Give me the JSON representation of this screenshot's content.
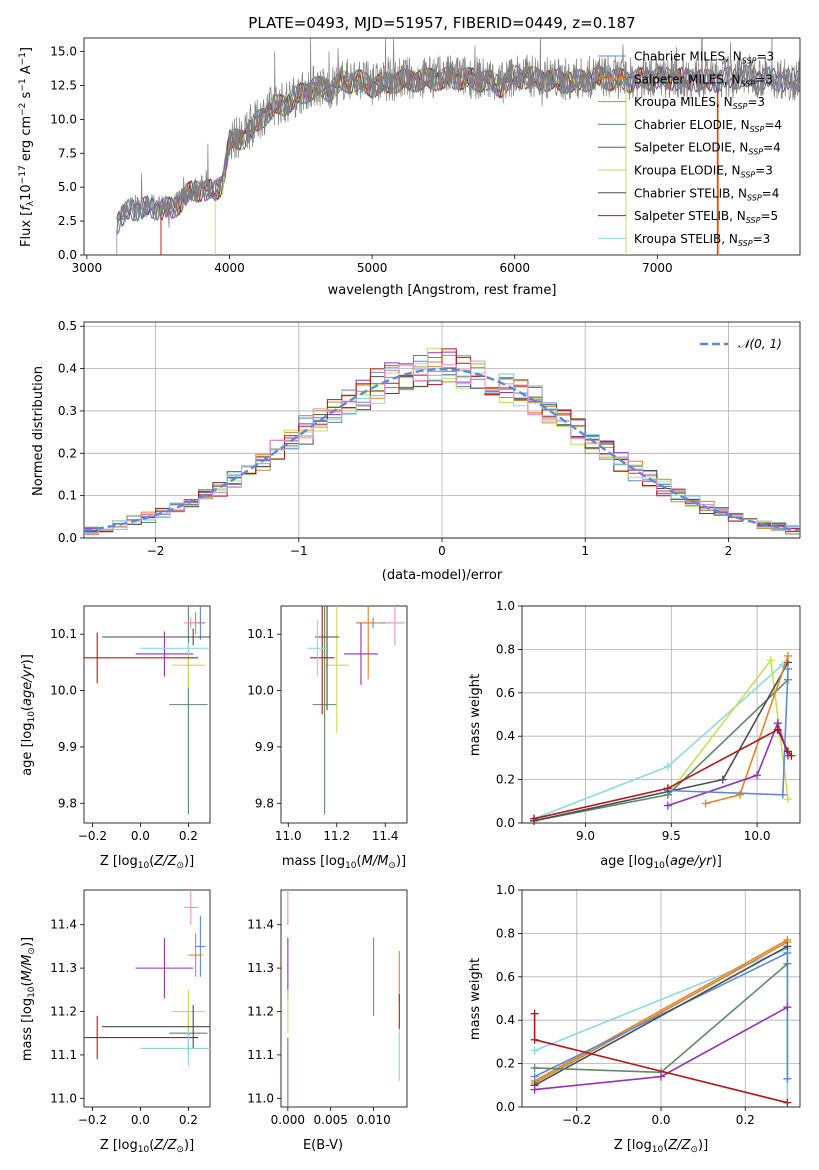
{
  "figure": {
    "title": "PLATE=0493, MJD=51957, FIBERID=0449, z=0.187"
  },
  "colors": {
    "c0": "#5b8bd8",
    "c1": "#e8822b",
    "c2": "#c48a3a",
    "c3": "#5d8a68",
    "c4": "#9234b0",
    "c5": "#c8dd5a",
    "c6": "#4d4d4d",
    "c7": "#b01a1a",
    "c8": "#8fd8e0",
    "c9": "#e890c8",
    "data": "#808080"
  },
  "chart_data": [
    {
      "id": "spectrum",
      "type": "line",
      "xlabel": "wavelength [Angstrom, rest frame]",
      "ylabel": "Flux [f_λ 10^-17 erg cm^-2 s^-1 A^-1]",
      "xlim": [
        2980,
        8000
      ],
      "ylim": [
        0,
        16
      ],
      "xticks": [
        3000,
        4000,
        5000,
        6000,
        7000
      ],
      "yticks": [
        0.0,
        2.5,
        5.0,
        7.5,
        10.0,
        12.5,
        15.0
      ],
      "ytick_labels": [
        "0.0",
        "2.5",
        "5.0",
        "7.5",
        "10.0",
        "12.5",
        "15.0"
      ],
      "observed_continuum": {
        "x": [
          3210,
          3300,
          3400,
          3500,
          3600,
          3700,
          3800,
          3900,
          3950,
          4000,
          4100,
          4200,
          4300,
          4400,
          4500,
          4600,
          4700,
          4800,
          4900,
          5000,
          5200,
          5400,
          5600,
          5800,
          5900,
          6000,
          6200,
          6400,
          6600,
          6800,
          7000,
          7200,
          7400,
          7600,
          7800,
          8000
        ],
        "y": [
          2.5,
          3.5,
          3.6,
          3.6,
          3.5,
          4.6,
          5.0,
          4.8,
          5.5,
          8.5,
          8.8,
          10.0,
          11.0,
          11.3,
          12.0,
          12.5,
          12.3,
          12.9,
          13.0,
          12.6,
          13.0,
          13.1,
          13.2,
          13.0,
          12.6,
          13.3,
          13.1,
          12.9,
          13.2,
          13.0,
          13.2,
          13.1,
          13.0,
          13.3,
          13.1,
          13.0
        ]
      },
      "legend": [
        {
          "label": "Chabrier MILES, N_SSP=3",
          "color": "c0"
        },
        {
          "label": "Salpeter MILES, N_SSP=3",
          "color": "c1"
        },
        {
          "label": "Kroupa MILES, N_SSP=3",
          "color": "c2"
        },
        {
          "label": "Chabrier ELODIE, N_SSP=4",
          "color": "c3"
        },
        {
          "label": "Salpeter ELODIE, N_SSP=4",
          "color": "c4"
        },
        {
          "label": "Kroupa ELODIE, N_SSP=3",
          "color": "c5"
        },
        {
          "label": "Chabrier STELIB, N_SSP=4",
          "color": "c6"
        },
        {
          "label": "Salpeter STELIB, N_SSP=5",
          "color": "c7"
        },
        {
          "label": "Kroupa STELIB, N_SSP=3",
          "color": "c8"
        }
      ]
    },
    {
      "id": "residuals",
      "type": "histogram",
      "xlabel": "(data-model)/error",
      "ylabel": "Normed distribution",
      "xlim": [
        -2.5,
        2.5
      ],
      "ylim": [
        0,
        0.51
      ],
      "xticks": [
        -2,
        -1,
        0,
        1,
        2
      ],
      "xtick_labels": [
        "−2",
        "−1",
        "0",
        "1",
        "2"
      ],
      "yticks": [
        0.0,
        0.1,
        0.2,
        0.3,
        0.4,
        0.5
      ],
      "ytick_labels": [
        "0.0",
        "0.1",
        "0.2",
        "0.3",
        "0.4",
        "0.5"
      ],
      "bin_width": 0.1,
      "reference_curve": "N(0,1)",
      "legend": [
        {
          "label": "𝒩(0, 1)",
          "color": "c0"
        }
      ],
      "grid": true
    },
    {
      "id": "age-vs-Z",
      "type": "errorbar",
      "xlabel": "Z [log10(Z/Z⊙)]",
      "ylabel": "age [log10(age/yr)]",
      "xlim": [
        -0.235,
        0.29
      ],
      "ylim": [
        9.765,
        10.15
      ],
      "xticks": [
        -0.2,
        0.0,
        0.2
      ],
      "xtick_labels": [
        "−0.2",
        "0.0",
        "0.2"
      ],
      "yticks": [
        9.8,
        9.9,
        10.0,
        10.1
      ],
      "ytick_labels": [
        "9.8",
        "9.9",
        "10.0",
        "10.1"
      ],
      "points": [
        {
          "color": "c0",
          "x": 0.25,
          "xerr": 0.02,
          "y": 10.12,
          "yerr": 0.03
        },
        {
          "color": "c1",
          "x": 0.23,
          "xerr": 0.03,
          "y": 10.12,
          "yerr": 0.02
        },
        {
          "color": "c3",
          "x": 0.2,
          "xerr": 0.08,
          "y": 9.975,
          "yerr": 0.195
        },
        {
          "color": "c4",
          "x": 0.1,
          "xerr": 0.12,
          "y": 10.065,
          "yerr": 0.04
        },
        {
          "color": "c5",
          "x": 0.2,
          "xerr": 0.07,
          "y": 10.045,
          "yerr": 0.04
        },
        {
          "color": "c6",
          "x": 0.22,
          "xerr": 0.38,
          "y": 10.095,
          "yerr": 0.015
        },
        {
          "color": "c7",
          "x": -0.18,
          "xerr": 0.42,
          "y": 10.058,
          "yerr": 0.045
        },
        {
          "color": "c8",
          "x": 0.2,
          "xerr": 0.2,
          "y": 10.075,
          "yerr": 0.01
        },
        {
          "color": "c9",
          "x": 0.21,
          "xerr": 0.03,
          "y": 10.12,
          "yerr": 0.01
        }
      ]
    },
    {
      "id": "age-vs-mass",
      "type": "errorbar",
      "xlabel": "mass [log10(M/M⊙)]",
      "ylabel": "",
      "xlim": [
        10.97,
        11.49
      ],
      "ylim": [
        9.765,
        10.15
      ],
      "xticks": [
        11.0,
        11.2,
        11.4
      ],
      "xtick_labels": [
        "11.0",
        "11.2",
        "11.4"
      ],
      "yticks": [
        9.8,
        9.9,
        10.0,
        10.1
      ],
      "ytick_labels": [
        "9.8",
        "9.9",
        "10.0",
        "10.1"
      ],
      "points": [
        {
          "color": "c0",
          "x": 11.35,
          "xerr": 0.07,
          "y": 10.12,
          "yerr": 0.01
        },
        {
          "color": "c1",
          "x": 11.33,
          "xerr": 0.05,
          "y": 10.12,
          "yerr": 0.1
        },
        {
          "color": "c3",
          "x": 11.15,
          "xerr": 0.05,
          "y": 9.975,
          "yerr": 0.195
        },
        {
          "color": "c4",
          "x": 11.3,
          "xerr": 0.07,
          "y": 10.065,
          "yerr": 0.055
        },
        {
          "color": "c5",
          "x": 11.2,
          "xerr": 0.05,
          "y": 10.045,
          "yerr": 0.12
        },
        {
          "color": "c6",
          "x": 11.16,
          "xerr": 0.05,
          "y": 10.095,
          "yerr": 0.13
        },
        {
          "color": "c7",
          "x": 11.14,
          "xerr": 0.05,
          "y": 10.058,
          "yerr": 0.1
        },
        {
          "color": "c8",
          "x": 11.12,
          "xerr": 0.04,
          "y": 10.075,
          "yerr": 0.05
        },
        {
          "color": "c9",
          "x": 11.44,
          "xerr": 0.04,
          "y": 10.12,
          "yerr": 0.04
        }
      ]
    },
    {
      "id": "massweight-vs-age",
      "type": "line",
      "xlabel": "age [log10(age/yr)]",
      "ylabel": "mass weight",
      "xlim": [
        8.63,
        10.25
      ],
      "ylim": [
        0,
        1.0
      ],
      "xticks": [
        9.0,
        9.5,
        10.0
      ],
      "xtick_labels": [
        "9.0",
        "9.5",
        "10.0"
      ],
      "yticks": [
        0.0,
        0.2,
        0.4,
        0.6,
        0.8,
        1.0
      ],
      "ytick_labels": [
        "0.0",
        "0.2",
        "0.4",
        "0.6",
        "0.8",
        "1.0"
      ],
      "grid": true,
      "series": [
        {
          "color": "c8",
          "x": [
            8.7,
            9.48,
            10.15
          ],
          "y": [
            0.02,
            0.26,
            0.73
          ]
        },
        {
          "color": "c5",
          "x": [
            9.48,
            10.08,
            10.18
          ],
          "y": [
            0.13,
            0.75,
            0.11
          ]
        },
        {
          "color": "c3",
          "x": [
            8.7,
            9.48,
            10.18
          ],
          "y": [
            0.01,
            0.13,
            0.66
          ]
        },
        {
          "color": "c6",
          "x": [
            8.7,
            9.8,
            10.18
          ],
          "y": [
            0.01,
            0.2,
            0.74
          ]
        },
        {
          "color": "c1",
          "x": [
            9.7,
            9.9,
            10.18
          ],
          "y": [
            0.09,
            0.13,
            0.77
          ]
        },
        {
          "color": "c4",
          "x": [
            9.48,
            10.0,
            10.12,
            10.18
          ],
          "y": [
            0.08,
            0.22,
            0.46,
            0.31
          ]
        },
        {
          "color": "c0",
          "x": [
            9.48,
            10.15,
            10.18
          ],
          "y": [
            0.15,
            0.13,
            0.71
          ]
        },
        {
          "color": "c7",
          "x": [
            8.7,
            9.48,
            10.12,
            10.18,
            10.2
          ],
          "y": [
            0.02,
            0.16,
            0.43,
            0.33,
            0.31
          ]
        }
      ]
    },
    {
      "id": "mass-vs-Z",
      "type": "errorbar",
      "xlabel": "Z [log10(Z/Z⊙)]",
      "ylabel": "mass [log10(M/M⊙)]",
      "xlim": [
        -0.235,
        0.29
      ],
      "ylim": [
        10.98,
        11.48
      ],
      "xticks": [
        -0.2,
        0.0,
        0.2
      ],
      "xtick_labels": [
        "−0.2",
        "0.0",
        "0.2"
      ],
      "yticks": [
        11.0,
        11.1,
        11.2,
        11.3,
        11.4
      ],
      "ytick_labels": [
        "11.0",
        "11.1",
        "11.2",
        "11.3",
        "11.4"
      ],
      "points": [
        {
          "color": "c0",
          "x": 0.25,
          "xerr": 0.02,
          "y": 11.35,
          "yerr": 0.07
        },
        {
          "color": "c1",
          "x": 0.23,
          "xerr": 0.03,
          "y": 11.33,
          "yerr": 0.05
        },
        {
          "color": "c3",
          "x": 0.2,
          "xerr": 0.08,
          "y": 11.15,
          "yerr": 0.05
        },
        {
          "color": "c4",
          "x": 0.1,
          "xerr": 0.12,
          "y": 11.3,
          "yerr": 0.07
        },
        {
          "color": "c5",
          "x": 0.2,
          "xerr": 0.07,
          "y": 11.2,
          "yerr": 0.05
        },
        {
          "color": "c6",
          "x": 0.22,
          "xerr": 0.38,
          "y": 11.165,
          "yerr": 0.05
        },
        {
          "color": "c7",
          "x": -0.18,
          "xerr": 0.42,
          "y": 11.14,
          "yerr": 0.05
        },
        {
          "color": "c8",
          "x": 0.2,
          "xerr": 0.2,
          "y": 11.115,
          "yerr": 0.04
        },
        {
          "color": "c9",
          "x": 0.21,
          "xerr": 0.03,
          "y": 11.44,
          "yerr": 0.04
        }
      ]
    },
    {
      "id": "mass-vs-ebv",
      "type": "errorbar",
      "xlabel": "E(B-V)",
      "ylabel": "",
      "xlim": [
        -0.0008,
        0.0139
      ],
      "ylim": [
        10.98,
        11.48
      ],
      "xticks": [
        0.0,
        0.005,
        0.01
      ],
      "xtick_labels": [
        "0.000",
        "0.005",
        "0.010"
      ],
      "yticks": [
        11.0,
        11.1,
        11.2,
        11.3,
        11.4
      ],
      "ytick_labels": [
        "11.0",
        "11.1",
        "11.2",
        "11.3",
        "11.4"
      ],
      "points": [
        {
          "color": "c9",
          "x": 0.0,
          "xerr": 0,
          "y": 11.44,
          "yerr": 0.04
        },
        {
          "color": "c4",
          "x": 0.0,
          "xerr": 0,
          "y": 11.3,
          "yerr": 0.07
        },
        {
          "color": "c5",
          "x": 0.0,
          "xerr": 0,
          "y": 11.2,
          "yerr": 0.05
        },
        {
          "color": "c3",
          "x": 0.0,
          "xerr": 0,
          "y": 11.06,
          "yerr": 0.08
        },
        {
          "color": "c0",
          "x": 0.01,
          "xerr": 0,
          "y": 11.28,
          "yerr": 0.09
        },
        {
          "color": "c1",
          "x": 0.013,
          "xerr": 0,
          "y": 11.28,
          "yerr": 0.06
        },
        {
          "color": "c7",
          "x": 0.013,
          "xerr": 0,
          "y": 11.2,
          "yerr": 0.04
        },
        {
          "color": "c8",
          "x": 0.013,
          "xerr": 0,
          "y": 11.1,
          "yerr": 0.06
        }
      ]
    },
    {
      "id": "massweight-vs-Z",
      "type": "line",
      "xlabel": "Z [log10(Z/Z⊙)]",
      "ylabel": "mass weight",
      "xlim": [
        -0.33,
        0.33
      ],
      "ylim": [
        0,
        1.0
      ],
      "xticks": [
        -0.2,
        0.0,
        0.2
      ],
      "xtick_labels": [
        "−0.2",
        "0.0",
        "0.2"
      ],
      "yticks": [
        0.0,
        0.2,
        0.4,
        0.6,
        0.8,
        1.0
      ],
      "ytick_labels": [
        "0.0",
        "0.2",
        "0.4",
        "0.6",
        "0.8",
        "1.0"
      ],
      "grid": true,
      "series": [
        {
          "color": "c8",
          "x": [
            -0.3,
            0.3,
            0.3
          ],
          "y": [
            0.26,
            0.73,
            0.02
          ]
        },
        {
          "color": "c1",
          "x": [
            -0.3,
            0.3
          ],
          "y": [
            0.12,
            0.77
          ]
        },
        {
          "color": "c2",
          "x": [
            -0.3,
            0.3
          ],
          "y": [
            0.11,
            0.76
          ]
        },
        {
          "color": "c0",
          "x": [
            -0.3,
            0.3,
            0.3
          ],
          "y": [
            0.14,
            0.71,
            0.13
          ]
        },
        {
          "color": "c6",
          "x": [
            -0.3,
            0.3
          ],
          "y": [
            0.1,
            0.74
          ]
        },
        {
          "color": "c3",
          "x": [
            -0.3,
            0.0,
            0.3
          ],
          "y": [
            0.18,
            0.16,
            0.66
          ]
        },
        {
          "color": "c4",
          "x": [
            -0.3,
            0.0,
            0.3
          ],
          "y": [
            0.08,
            0.14,
            0.46
          ]
        },
        {
          "color": "c7",
          "x": [
            -0.3,
            -0.3,
            0.3
          ],
          "y": [
            0.43,
            0.31,
            0.02
          ]
        }
      ]
    }
  ]
}
